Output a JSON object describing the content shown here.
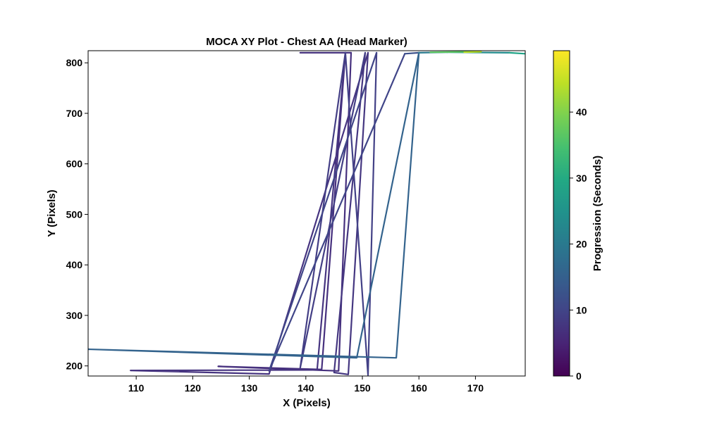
{
  "chart_data": {
    "type": "line",
    "title": "MOCA XY Plot - Chest AA (Head Marker)",
    "xlabel": "X (Pixels)",
    "ylabel": "Y (Pixels)",
    "xlim": [
      101.5,
      178.8
    ],
    "ylim": [
      180,
      824
    ],
    "xticks": [
      110,
      120,
      130,
      140,
      150,
      160,
      170
    ],
    "yticks": [
      200,
      300,
      400,
      500,
      600,
      700,
      800
    ],
    "grid": false,
    "colorbar": {
      "label": "Progression (Seconds)",
      "range": [
        0,
        49.3
      ],
      "ticks": [
        0,
        10,
        20,
        30,
        40
      ],
      "colormap": "viridis"
    },
    "series": [
      {
        "segments": [
          {
            "t": [
              0,
              3
            ],
            "color": "#46327e",
            "points": [
              [
                139,
                820
              ],
              [
                148,
                820
              ]
            ]
          },
          {
            "t": [
              3,
              4
            ],
            "color": "#46307e",
            "points": [
              [
                148,
                820
              ],
              [
                145.8,
                190
              ],
              [
                124.5,
                199
              ],
              [
                142.8,
                193
              ],
              [
                147,
                820
              ]
            ]
          },
          {
            "t": [
              4,
              5
            ],
            "color": "#463480",
            "points": [
              [
                147,
                820
              ],
              [
                142,
                192
              ],
              [
                109,
                191
              ],
              [
                133.5,
                184
              ],
              [
                151,
                820
              ]
            ]
          },
          {
            "t": [
              5,
              6
            ],
            "color": "#453781",
            "points": [
              [
                151,
                820
              ],
              [
                147.5,
                183
              ],
              [
                145,
                187
              ],
              [
                150.5,
                820
              ]
            ]
          },
          {
            "t": [
              6,
              7
            ],
            "color": "#433e85",
            "points": [
              [
                150.5,
                820
              ],
              [
                139,
                196
              ],
              [
                147,
                820
              ]
            ]
          },
          {
            "t": [
              7,
              8
            ],
            "color": "#424086",
            "points": [
              [
                147,
                820
              ],
              [
                151,
                182
              ],
              [
                152.5,
                820
              ]
            ]
          },
          {
            "t": [
              8,
              9
            ],
            "color": "#404588",
            "points": [
              [
                152.5,
                820
              ],
              [
                133.5,
                190
              ],
              [
                157.5,
                818
              ]
            ]
          },
          {
            "t": [
              9,
              14
            ],
            "color": "#3c508b",
            "points": [
              [
                157.5,
                818
              ],
              [
                160,
                820
              ]
            ]
          },
          {
            "t": [
              14,
              18
            ],
            "color": "#33638d",
            "points": [
              [
                160,
                820
              ],
              [
                149,
                216
              ],
              [
                101.5,
                233
              ],
              [
                156,
                216
              ],
              [
                160,
                820
              ]
            ]
          },
          {
            "t": [
              18,
              24
            ],
            "color": "#297a8e",
            "points": [
              [
                160,
                820
              ],
              [
                165,
                821
              ]
            ]
          },
          {
            "t": [
              24,
              30
            ],
            "color": "#228c8d",
            "points": [
              [
                165,
                821
              ],
              [
                176,
                820
              ]
            ]
          },
          {
            "t": [
              30,
              34
            ],
            "color": "#20a386",
            "points": [
              [
                176,
                820
              ],
              [
                178.8,
                818
              ]
            ]
          },
          {
            "t": [
              34,
              45
            ],
            "color": "#5ec962",
            "points": [
              [
                162,
                821
              ],
              [
                170,
                822
              ]
            ]
          },
          {
            "t": [
              45,
              49
            ],
            "color": "#bddf26",
            "points": [
              [
                168,
                821
              ],
              [
                171,
                822
              ]
            ]
          }
        ]
      }
    ]
  }
}
